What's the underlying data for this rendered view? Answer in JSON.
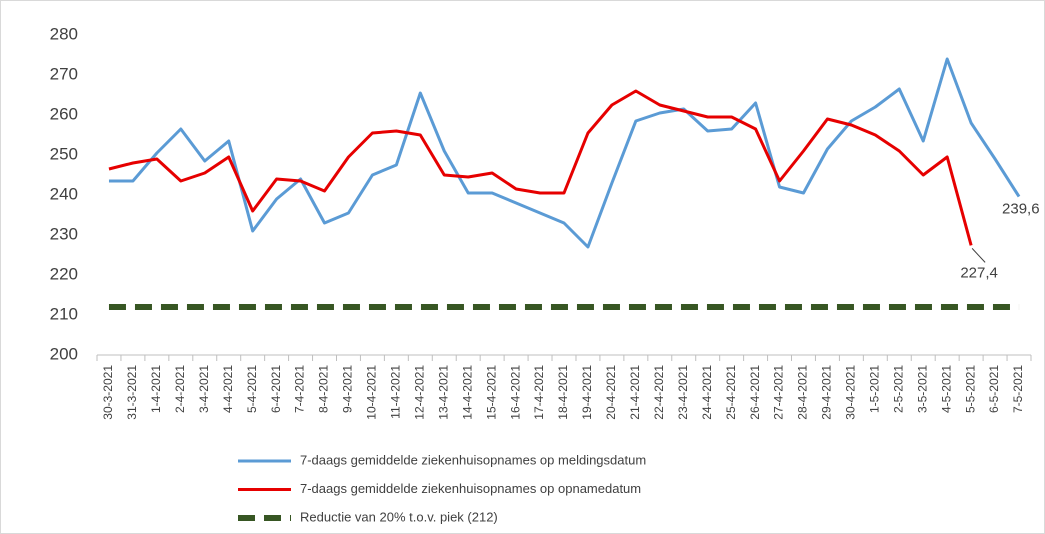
{
  "chart_data": {
    "type": "line",
    "categories": [
      "30-3-2021",
      "31-3-2021",
      "1-4-2021",
      "2-4-2021",
      "3-4-2021",
      "4-4-2021",
      "5-4-2021",
      "6-4-2021",
      "7-4-2021",
      "8-4-2021",
      "9-4-2021",
      "10-4-2021",
      "11-4-2021",
      "12-4-2021",
      "13-4-2021",
      "14-4-2021",
      "15-4-2021",
      "16-4-2021",
      "17-4-2021",
      "18-4-2021",
      "19-4-2021",
      "20-4-2021",
      "21-4-2021",
      "22-4-2021",
      "23-4-2021",
      "24-4-2021",
      "25-4-2021",
      "26-4-2021",
      "27-4-2021",
      "28-4-2021",
      "29-4-2021",
      "30-4-2021",
      "1-5-2021",
      "2-5-2021",
      "3-5-2021",
      "4-5-2021",
      "5-5-2021",
      "6-5-2021",
      "7-5-2021"
    ],
    "series": [
      {
        "name": "7-daags gemiddelde ziekenhuisopnames op meldingsdatum",
        "color": "#5b9bd5",
        "values": [
          243.5,
          243.5,
          250.5,
          256.5,
          248.5,
          253.5,
          231,
          239,
          244,
          233,
          235.5,
          245,
          247.5,
          265.5,
          251,
          240.5,
          240.5,
          238,
          235.5,
          233,
          227,
          243,
          258.5,
          260.5,
          261.5,
          256,
          256.5,
          263,
          242,
          240.5,
          251.5,
          258.5,
          262,
          266.5,
          253.5,
          274,
          258,
          249,
          239.6
        ],
        "value_labels": [
          null,
          null,
          null,
          null,
          null,
          null,
          null,
          null,
          null,
          null,
          null,
          null,
          null,
          null,
          null,
          null,
          null,
          null,
          null,
          null,
          null,
          null,
          null,
          null,
          null,
          null,
          null,
          null,
          null,
          null,
          null,
          null,
          null,
          null,
          null,
          null,
          null,
          null,
          "239,6"
        ]
      },
      {
        "name": "7-daags gemiddelde ziekenhuisopnames op opnamedatum",
        "color": "#e60000",
        "values": [
          246.5,
          248,
          249,
          243.5,
          245.5,
          249.5,
          236,
          244,
          243.5,
          241,
          249.5,
          255.5,
          256,
          255,
          245,
          244.5,
          245.5,
          241.5,
          240.5,
          240.5,
          255.5,
          262.5,
          266,
          262.5,
          261,
          259.5,
          259.5,
          256.5,
          243.5,
          251,
          259,
          257.5,
          255,
          251,
          245,
          249.5,
          227.4,
          null,
          null
        ],
        "value_labels": [
          null,
          null,
          null,
          null,
          null,
          null,
          null,
          null,
          null,
          null,
          null,
          null,
          null,
          null,
          null,
          null,
          null,
          null,
          null,
          null,
          null,
          null,
          null,
          null,
          null,
          null,
          null,
          null,
          null,
          null,
          null,
          null,
          null,
          null,
          null,
          null,
          "227,4",
          null,
          null
        ]
      },
      {
        "name": "Reductie van 20% t.o.v. piek (212)",
        "color": "#375623",
        "dashed": true,
        "values": [
          212,
          212,
          212,
          212,
          212,
          212,
          212,
          212,
          212,
          212,
          212,
          212,
          212,
          212,
          212,
          212,
          212,
          212,
          212,
          212,
          212,
          212,
          212,
          212,
          212,
          212,
          212,
          212,
          212,
          212,
          212,
          212,
          212,
          212,
          212,
          212,
          212,
          212,
          212
        ]
      }
    ],
    "ylim": [
      200,
      280
    ],
    "yticks": [
      200,
      210,
      220,
      230,
      240,
      250,
      260,
      270,
      280
    ],
    "grid": false,
    "legend": "bottom"
  }
}
